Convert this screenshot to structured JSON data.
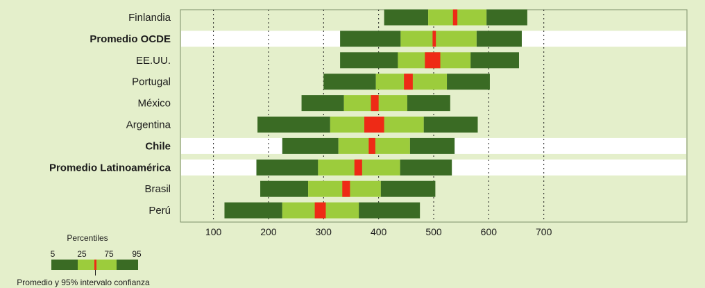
{
  "chart_data": {
    "type": "bar",
    "title": "",
    "xlabel": "",
    "ylabel": "",
    "xlim": [
      40,
      960
    ],
    "ticks": [
      100,
      200,
      300,
      400,
      500,
      600,
      700
    ],
    "grid": true,
    "highlight_rows": [
      "Promedio OCDE",
      "Chile",
      "Promedio Latinoamérica"
    ],
    "colors": {
      "outer": "#3a6b24",
      "inner": "#9ccc3c",
      "mean": "#ee2a16",
      "highlight_band": "#ffffff",
      "panel": "#e4efcb"
    },
    "categories": [
      "Finlandia",
      "Promedio OCDE",
      "EE.UU.",
      "Portugal",
      "México",
      "Argentina",
      "Chile",
      "Promedio Latinoamérica",
      "Brasil",
      "Perú"
    ],
    "series": [
      {
        "name": "5",
        "values": [
          410,
          330,
          330,
          300,
          260,
          180,
          225,
          178,
          185,
          120
        ]
      },
      {
        "name": "25",
        "values": [
          490,
          440,
          435,
          395,
          337,
          312,
          327,
          290,
          272,
          225
        ]
      },
      {
        "name": "75",
        "values": [
          596,
          578,
          567,
          524,
          452,
          482,
          457,
          439,
          404,
          364
        ]
      },
      {
        "name": "95",
        "values": [
          670,
          660,
          655,
          602,
          530,
          580,
          538,
          533,
          503,
          475
        ]
      }
    ],
    "mean_ci": [
      [
        535,
        543
      ],
      [
        498,
        504
      ],
      [
        484,
        512
      ],
      [
        446,
        462
      ],
      [
        386,
        400
      ],
      [
        374,
        410
      ],
      [
        382,
        394
      ],
      [
        356,
        370
      ],
      [
        334,
        348
      ],
      [
        284,
        304
      ]
    ]
  },
  "legend": {
    "title": "Percentiles",
    "labels": [
      "5",
      "25",
      "75",
      "95"
    ],
    "caption": "Promedio y 95% intervalo confianza"
  }
}
